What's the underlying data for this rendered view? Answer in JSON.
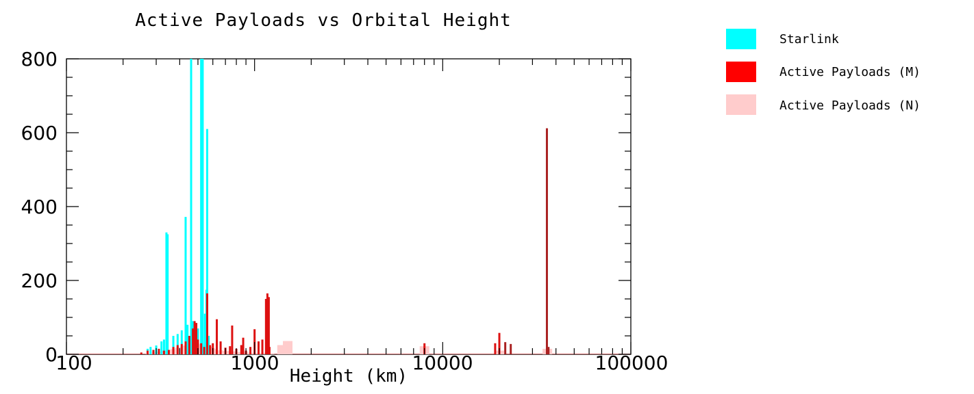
{
  "chart_data": {
    "type": "bar",
    "title": "Active Payloads vs Orbital Height",
    "xlabel": "Height (km)",
    "ylabel": "",
    "xscale": "log",
    "xlim": [
      100,
      100000
    ],
    "ylim": [
      0,
      800
    ],
    "x_ticks": [
      "100",
      "1000",
      "10000",
      "100000"
    ],
    "y_ticks": [
      "0",
      "200",
      "400",
      "600",
      "800"
    ],
    "grid": false,
    "legend_position": "right",
    "legend": [
      {
        "label": "Starlink",
        "color": "#00ffff"
      },
      {
        "label": "Active Payloads (M)",
        "color": "#ff0000"
      },
      {
        "label": "Active Payloads (N)",
        "color": "#ffcccc"
      }
    ],
    "series": [
      {
        "name": "Active Payloads (N)",
        "color": "#ffcccc",
        "points": [
          [
            280,
            3
          ],
          [
            300,
            5
          ],
          [
            320,
            7
          ],
          [
            340,
            10
          ],
          [
            360,
            12
          ],
          [
            380,
            14
          ],
          [
            400,
            18
          ],
          [
            420,
            20
          ],
          [
            440,
            24
          ],
          [
            460,
            27
          ],
          [
            480,
            30
          ],
          [
            500,
            27
          ],
          [
            520,
            25
          ],
          [
            540,
            24
          ],
          [
            560,
            20
          ],
          [
            580,
            17
          ],
          [
            600,
            14
          ],
          [
            640,
            11
          ],
          [
            700,
            9
          ],
          [
            760,
            8
          ],
          [
            820,
            6
          ],
          [
            900,
            5
          ],
          [
            1000,
            4
          ],
          [
            1100,
            4
          ],
          [
            1200,
            3
          ],
          [
            1400,
            25
          ],
          [
            1500,
            36
          ],
          [
            8000,
            22
          ],
          [
            20000,
            10
          ],
          [
            36000,
            15
          ]
        ]
      },
      {
        "name": "Starlink",
        "color": "#00ffff",
        "points": [
          [
            270,
            15
          ],
          [
            280,
            20
          ],
          [
            300,
            24
          ],
          [
            320,
            35
          ],
          [
            330,
            40
          ],
          [
            340,
            330
          ],
          [
            345,
            325
          ],
          [
            370,
            50
          ],
          [
            390,
            55
          ],
          [
            410,
            65
          ],
          [
            430,
            372
          ],
          [
            440,
            80
          ],
          [
            460,
            800
          ],
          [
            470,
            90
          ],
          [
            500,
            70
          ],
          [
            520,
            800
          ],
          [
            530,
            800
          ],
          [
            545,
            110
          ],
          [
            555,
            175
          ],
          [
            560,
            610
          ],
          [
            570,
            50
          ]
        ]
      },
      {
        "name": "Active Payloads (M)",
        "color": "#ff0000",
        "points": [
          [
            250,
            5
          ],
          [
            270,
            10
          ],
          [
            290,
            12
          ],
          [
            310,
            15
          ],
          [
            330,
            10
          ],
          [
            350,
            12
          ],
          [
            370,
            20
          ],
          [
            390,
            25
          ],
          [
            410,
            28
          ],
          [
            430,
            35
          ],
          [
            450,
            50
          ],
          [
            470,
            70
          ],
          [
            480,
            90
          ],
          [
            490,
            85
          ],
          [
            500,
            40
          ],
          [
            520,
            30
          ],
          [
            540,
            20
          ],
          [
            560,
            165
          ],
          [
            580,
            25
          ],
          [
            600,
            30
          ],
          [
            630,
            95
          ],
          [
            660,
            35
          ],
          [
            700,
            18
          ],
          [
            740,
            22
          ],
          [
            760,
            78
          ],
          [
            800,
            15
          ],
          [
            850,
            25
          ],
          [
            870,
            45
          ],
          [
            900,
            10
          ],
          [
            950,
            20
          ],
          [
            1000,
            68
          ],
          [
            1050,
            35
          ],
          [
            1100,
            40
          ],
          [
            1150,
            150
          ],
          [
            1170,
            165
          ],
          [
            1190,
            155
          ],
          [
            1200,
            20
          ],
          [
            8000,
            30
          ],
          [
            19000,
            30
          ],
          [
            20000,
            58
          ],
          [
            21500,
            33
          ],
          [
            23000,
            28
          ],
          [
            35800,
            612
          ],
          [
            36500,
            20
          ]
        ]
      }
    ]
  }
}
